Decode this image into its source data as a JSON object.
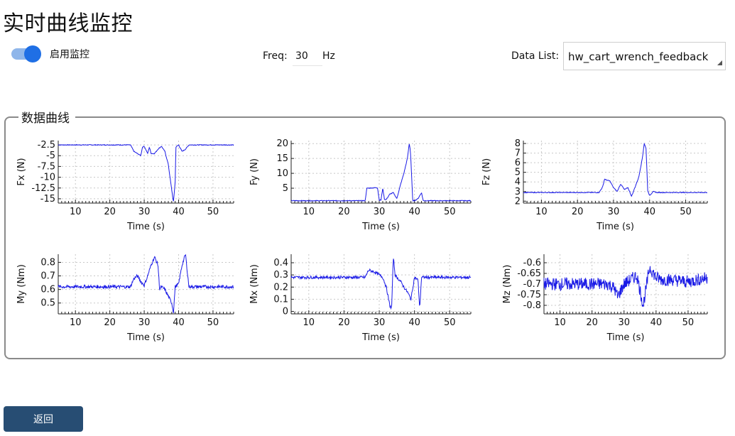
{
  "page": {
    "title": "实时曲线监控"
  },
  "controls": {
    "monitor_toggle": {
      "label": "启用监控",
      "enabled": true
    },
    "freq": {
      "label": "Freq:",
      "value": "30",
      "unit": "Hz"
    },
    "data_list": {
      "label": "Data List:",
      "selected": "hw_cart_wrench_feedback"
    }
  },
  "group": {
    "title": "数据曲线"
  },
  "colors": {
    "line": "#1a1ae6",
    "accent": "#1f6fe5",
    "button": "#274d73"
  },
  "chart_data": [
    {
      "type": "line",
      "title": "",
      "xlabel": "Time (s)",
      "ylabel": "Fx (N)",
      "xlim": [
        5,
        56
      ],
      "ylim": [
        -16,
        -1.5
      ],
      "xticks": [
        10,
        20,
        30,
        40,
        50
      ],
      "yticks": [
        -2.5,
        -5,
        -7.5,
        -10,
        -12.5,
        -15
      ],
      "grid": true,
      "x": [
        5,
        26,
        27,
        28,
        29,
        29.5,
        30,
        31,
        31.5,
        32,
        33,
        34,
        35,
        36,
        37,
        38,
        38.5,
        39,
        39.2,
        40,
        41,
        42,
        43,
        56
      ],
      "y": [
        -2.5,
        -2.5,
        -4,
        -4.5,
        -5,
        -3,
        -2.8,
        -4.5,
        -3,
        -4.5,
        -4.5,
        -3.5,
        -2.8,
        -4,
        -7,
        -13,
        -15.8,
        -11,
        -3,
        -2.5,
        -4,
        -3.5,
        -2.5,
        -2.5
      ]
    },
    {
      "type": "line",
      "title": "",
      "xlabel": "Time (s)",
      "ylabel": "Fy (N)",
      "xlim": [
        5,
        56
      ],
      "ylim": [
        0,
        21
      ],
      "xticks": [
        10,
        20,
        30,
        40,
        50
      ],
      "yticks": [
        5,
        10,
        15,
        20
      ],
      "grid": true,
      "x": [
        5,
        26,
        26.5,
        29.5,
        30,
        30.5,
        31,
        31.5,
        32,
        33,
        34,
        35,
        36,
        37,
        38,
        38.5,
        38.8,
        39,
        39.5,
        40,
        41,
        42,
        42.5,
        43,
        56
      ],
      "y": [
        0.8,
        0.8,
        5,
        5.2,
        1,
        1,
        5,
        1.2,
        1.2,
        3,
        3.5,
        1.5,
        6,
        10,
        15,
        20,
        18,
        14,
        0.8,
        0.8,
        1.5,
        3.5,
        0.8,
        0.8,
        0.8
      ]
    },
    {
      "type": "line",
      "title": "",
      "xlabel": "Time (s)",
      "ylabel": "Fz (N)",
      "xlim": [
        5,
        56
      ],
      "ylim": [
        1.8,
        8.3
      ],
      "xticks": [
        10,
        20,
        30,
        40,
        50
      ],
      "yticks": [
        2,
        3,
        4,
        5,
        6,
        7,
        8
      ],
      "grid": true,
      "x": [
        5,
        26,
        27,
        27.5,
        28,
        29,
        30,
        31,
        32,
        33,
        34,
        35,
        36,
        37,
        38,
        38.5,
        39,
        39.5,
        40,
        41,
        42,
        56
      ],
      "y": [
        2.9,
        2.9,
        3.5,
        4.3,
        4.2,
        4.1,
        3.4,
        3,
        3.8,
        3.2,
        3.4,
        2.5,
        3.5,
        4.5,
        6.5,
        8,
        7.5,
        3,
        2.6,
        3,
        2.9,
        2.9
      ]
    },
    {
      "type": "line",
      "title": "",
      "xlabel": "Time (s)",
      "ylabel": "My (Nm)",
      "xlim": [
        5,
        56
      ],
      "ylim": [
        0.42,
        0.86
      ],
      "xticks": [
        10,
        20,
        30,
        40,
        50
      ],
      "yticks": [
        0.5,
        0.6,
        0.7,
        0.8
      ],
      "grid": true,
      "x": [
        5,
        26,
        27,
        28,
        29,
        30,
        31,
        32,
        33,
        34,
        34.5,
        35,
        36,
        37,
        38,
        38.5,
        39,
        40,
        41,
        42,
        43,
        56
      ],
      "y": [
        0.62,
        0.62,
        0.68,
        0.7,
        0.66,
        0.63,
        0.7,
        0.78,
        0.84,
        0.78,
        0.6,
        0.62,
        0.6,
        0.55,
        0.5,
        0.43,
        0.62,
        0.64,
        0.78,
        0.86,
        0.62,
        0.62
      ]
    },
    {
      "type": "line",
      "title": "",
      "xlabel": "Time (s)",
      "ylabel": "Mx (Nm)",
      "xlim": [
        5,
        56
      ],
      "ylim": [
        -0.02,
        0.47
      ],
      "xticks": [
        10,
        20,
        30,
        40,
        50
      ],
      "yticks": [
        0,
        0.1,
        0.2,
        0.3,
        0.4
      ],
      "grid": true,
      "x": [
        5,
        26,
        27,
        28,
        29,
        30,
        31,
        32,
        33,
        33.5,
        34,
        34.5,
        35,
        36,
        37,
        38,
        39,
        40,
        41,
        41.5,
        42,
        43,
        56
      ],
      "y": [
        0.28,
        0.28,
        0.34,
        0.33,
        0.32,
        0.3,
        0.28,
        0.2,
        0.05,
        0.02,
        0.45,
        0.3,
        0.28,
        0.25,
        0.2,
        0.16,
        0.1,
        0.28,
        0.26,
        0.02,
        0.28,
        0.28,
        0.28
      ]
    },
    {
      "type": "line",
      "title": "",
      "xlabel": "Time (s)",
      "ylabel": "Mz (Nm)",
      "xlim": [
        5,
        56
      ],
      "ylim": [
        -0.84,
        -0.56
      ],
      "xticks": [
        10,
        20,
        30,
        40,
        50
      ],
      "yticks": [
        -0.6,
        -0.65,
        -0.7,
        -0.75,
        -0.8
      ],
      "grid": true,
      "x": [
        5,
        10,
        20,
        25,
        27,
        28,
        30,
        32,
        34,
        36,
        38,
        40,
        42,
        45,
        50,
        56
      ],
      "y": [
        -0.7,
        -0.7,
        -0.7,
        -0.7,
        -0.72,
        -0.76,
        -0.7,
        -0.68,
        -0.66,
        -0.8,
        -0.62,
        -0.67,
        -0.68,
        -0.68,
        -0.69,
        -0.67
      ]
    }
  ],
  "back_button": {
    "label": "返回"
  }
}
